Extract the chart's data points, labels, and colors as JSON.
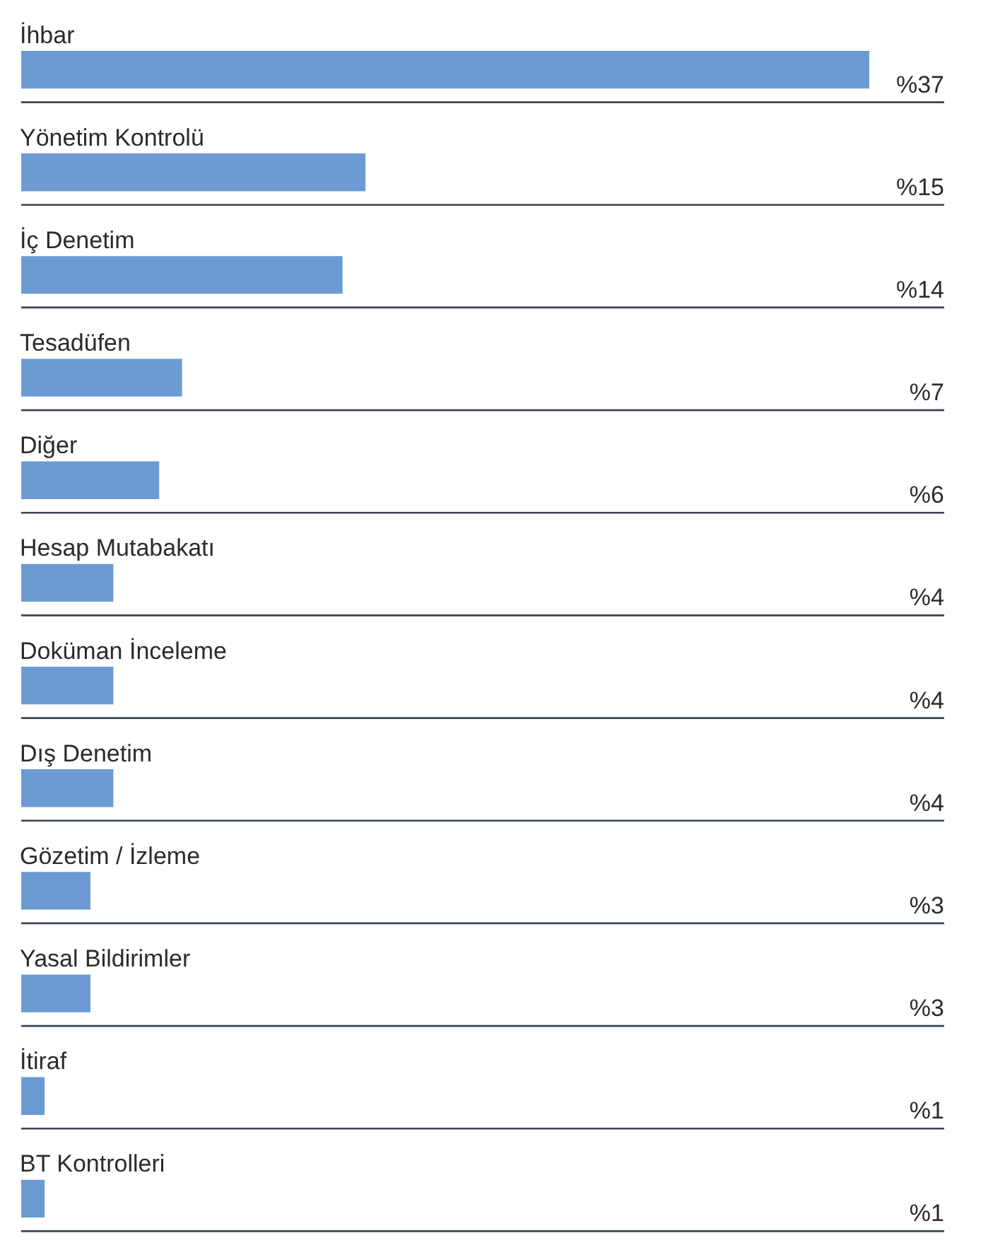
{
  "chart_data": {
    "type": "bar",
    "orientation": "horizontal",
    "categories": [
      "İhbar",
      "Yönetim Kontrolü",
      "İç Denetim",
      "Tesadüfen",
      "Diğer",
      "Hesap Mutabakatı",
      "Doküman İnceleme",
      "Dış Denetim",
      "Gözetim / İzleme",
      "Yasal Bildirimler",
      "İtiraf",
      "BT Kontrolleri"
    ],
    "values": [
      37,
      15,
      14,
      7,
      6,
      4,
      4,
      4,
      3,
      3,
      1,
      1
    ],
    "value_labels": [
      "%37",
      "%15",
      "%14",
      "%7",
      "%6",
      "%4",
      "%4",
      "%4",
      "%3",
      "%3",
      "%1",
      "%1"
    ],
    "color": "#6b9bd2",
    "xlim": [
      0,
      37
    ],
    "grid": "y"
  }
}
